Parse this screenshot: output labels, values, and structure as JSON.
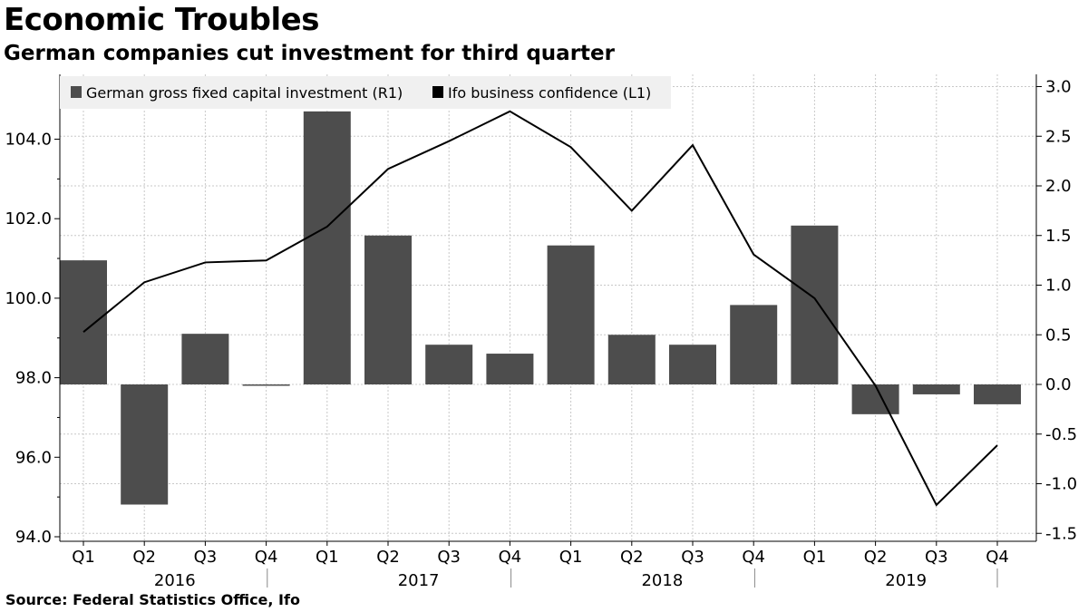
{
  "header": {
    "title": "Economic Troubles",
    "subtitle": "German companies cut investment for third quarter"
  },
  "footer": {
    "source": "Source: Federal Statistics Office, Ifo"
  },
  "colors": {
    "bar": "#4d4d4d",
    "line": "#000000",
    "grid": "#c8c8c8",
    "legend_bg": "#f0f0f0"
  },
  "chart_data": {
    "type": "bar",
    "x_quarters": [
      "Q1",
      "Q2",
      "Q3",
      "Q4",
      "Q1",
      "Q2",
      "Q3",
      "Q4",
      "Q1",
      "Q2",
      "Q3",
      "Q4",
      "Q1",
      "Q2",
      "Q3",
      "Q4"
    ],
    "x_years": [
      "2016",
      "2017",
      "2018",
      "2019"
    ],
    "series": [
      {
        "name": "German gross fixed capital investment (R1)",
        "type": "bar",
        "axis": "right",
        "values": [
          1.25,
          -1.21,
          0.51,
          -0.01,
          2.75,
          1.5,
          0.4,
          0.31,
          1.4,
          0.5,
          0.4,
          0.8,
          1.6,
          -0.3,
          -0.1,
          -0.2
        ]
      },
      {
        "name": "Ifo business confidence (L1)",
        "type": "line",
        "axis": "left",
        "values": [
          99.15,
          100.4,
          100.9,
          100.95,
          101.8,
          103.25,
          103.95,
          104.7,
          103.8,
          102.2,
          103.85,
          101.1,
          100.0,
          97.8,
          94.8,
          96.3
        ]
      }
    ],
    "left_axis": {
      "ylim": [
        94.0,
        105.0
      ],
      "ticks": [
        "94.0",
        "96.0",
        "98.0",
        "100.0",
        "102.0",
        "104.0"
      ],
      "tick_values": [
        94,
        96,
        98,
        100,
        102,
        104
      ]
    },
    "right_axis": {
      "ylim": [
        -1.5,
        3.0
      ],
      "ticks": [
        "-1.5",
        "-1.0",
        "-0.5",
        "0.0",
        "0.5",
        "1.0",
        "1.5",
        "2.0",
        "2.5",
        "3.0"
      ],
      "tick_values": [
        -1.5,
        -1.0,
        -0.5,
        0.0,
        0.5,
        1.0,
        1.5,
        2.0,
        2.5,
        3.0
      ]
    },
    "grid": true,
    "legend_position": "top-left"
  }
}
